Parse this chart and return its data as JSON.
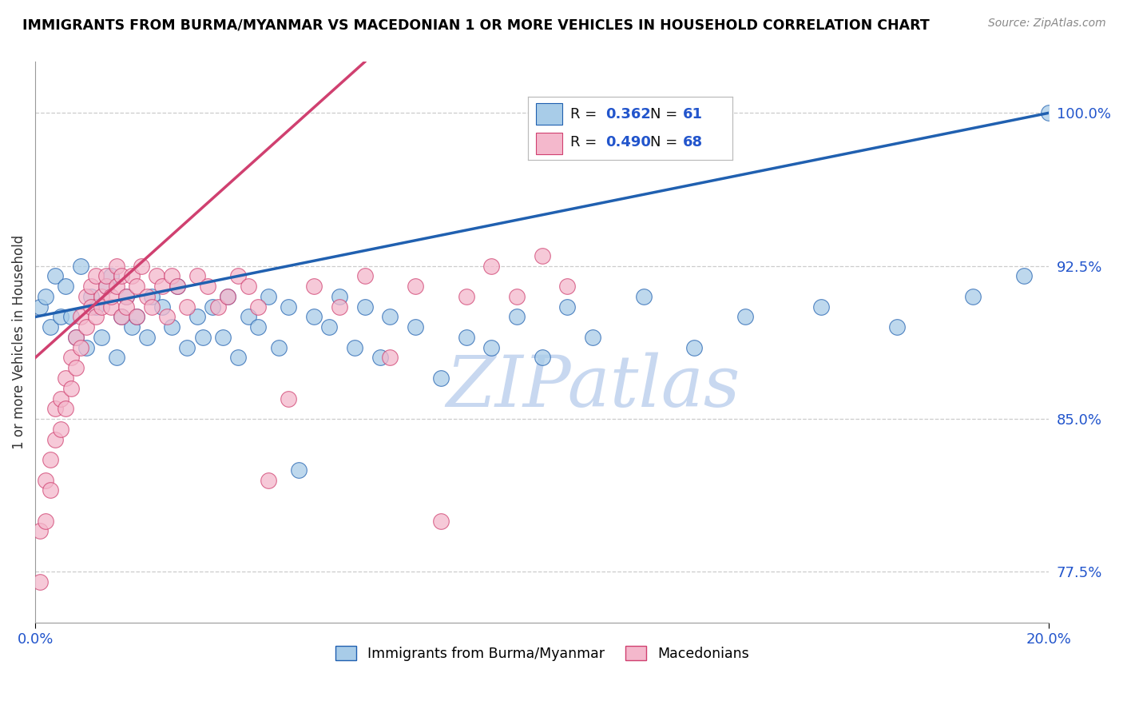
{
  "title": "IMMIGRANTS FROM BURMA/MYANMAR VS MACEDONIAN 1 OR MORE VEHICLES IN HOUSEHOLD CORRELATION CHART",
  "source": "Source: ZipAtlas.com",
  "ylabel": "1 or more Vehicles in Household",
  "legend_blue_r": "0.362",
  "legend_blue_n": "61",
  "legend_pink_r": "0.490",
  "legend_pink_n": "68",
  "legend_blue_label": "Immigrants from Burma/Myanmar",
  "legend_pink_label": "Macedonians",
  "blue_color": "#a8cce8",
  "pink_color": "#f4b8cc",
  "blue_line_color": "#2060b0",
  "pink_line_color": "#d04070",
  "r_n_color": "#2255cc",
  "watermark_color": "#c8d8f0",
  "y_ticks": [
    77.5,
    85.0,
    92.5,
    100.0
  ],
  "xlim": [
    0.0,
    0.2
  ],
  "ylim": [
    75.0,
    102.5
  ]
}
